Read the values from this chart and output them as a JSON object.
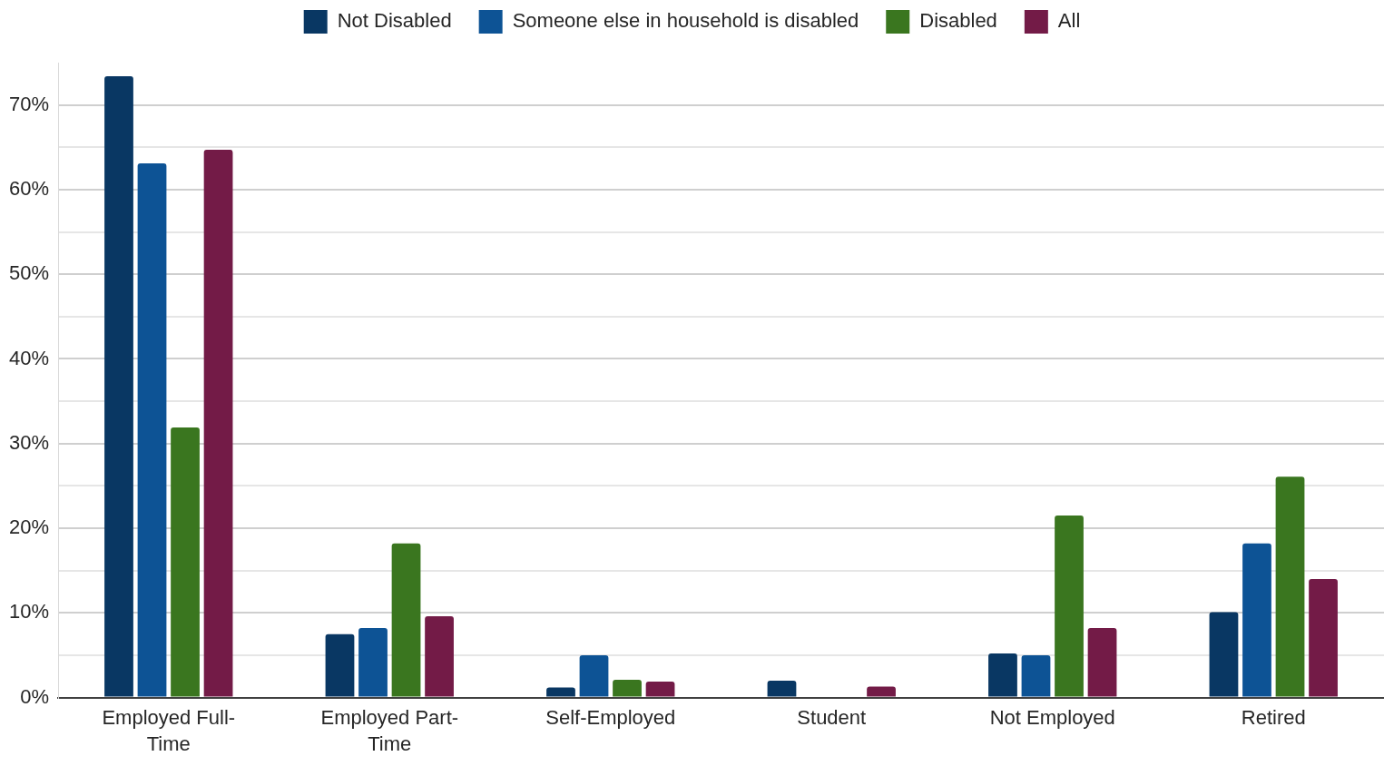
{
  "chart_data": {
    "type": "bar",
    "categories": [
      "Employed Full-Time",
      "Employed Part-Time",
      "Self-Employed",
      "Student",
      "Not Employed",
      "Retired"
    ],
    "series": [
      {
        "name": "Not Disabled",
        "color": "#093763",
        "values": [
          73.4,
          7.5,
          1.2,
          2.0,
          5.2,
          10.1
        ]
      },
      {
        "name": "Someone else in household is disabled",
        "color": "#0d5395",
        "values": [
          63.1,
          8.2,
          5.0,
          null,
          5.0,
          18.2
        ]
      },
      {
        "name": "Disabled",
        "color": "#3a761f",
        "values": [
          31.9,
          18.2,
          2.1,
          null,
          21.5,
          26.1
        ]
      },
      {
        "name": "All",
        "color": "#731b47",
        "values": [
          64.7,
          9.6,
          1.9,
          1.3,
          8.2,
          14.0
        ]
      }
    ],
    "ylim": [
      0,
      75
    ],
    "yticks": [
      {
        "value": 0,
        "label": "0%"
      },
      {
        "value": 5,
        "label": null
      },
      {
        "value": 10,
        "label": "10%"
      },
      {
        "value": 15,
        "label": null
      },
      {
        "value": 20,
        "label": "20%"
      },
      {
        "value": 25,
        "label": null
      },
      {
        "value": 30,
        "label": "30%"
      },
      {
        "value": 35,
        "label": null
      },
      {
        "value": 40,
        "label": "40%"
      },
      {
        "value": 45,
        "label": null
      },
      {
        "value": 50,
        "label": "50%"
      },
      {
        "value": 55,
        "label": null
      },
      {
        "value": 60,
        "label": "60%"
      },
      {
        "value": 65,
        "label": null
      },
      {
        "value": 70,
        "label": "70%"
      }
    ],
    "grid": "y",
    "legend": "top"
  }
}
